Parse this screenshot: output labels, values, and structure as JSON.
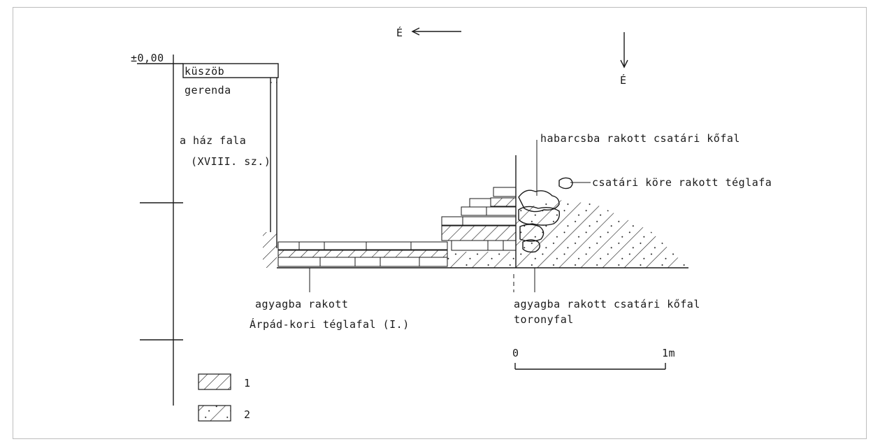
{
  "north_marker_top": "É",
  "north_marker_side": "É",
  "level_label": "±0,00",
  "labels": {
    "kuszob": "küszöb",
    "gerenda": "gerenda",
    "haz_fala": "a ház fala",
    "xviii": "(XVIII. sz.)",
    "habarcsba": "habarcsba rakott csatári kőfal",
    "csatari_kore": "csatári köre rakott téglafa",
    "agyagba_brick_1": "agyagba rakott",
    "agyagba_brick_2": "Árpád-kori téglafal (I.)",
    "agyagba_stone": "agyagba rakott csatári kőfal",
    "toronyfal": "toronyfal"
  },
  "scale_bar": {
    "start": "0",
    "end": "1m"
  },
  "legend": [
    {
      "num": "1"
    },
    {
      "num": "2"
    }
  ]
}
